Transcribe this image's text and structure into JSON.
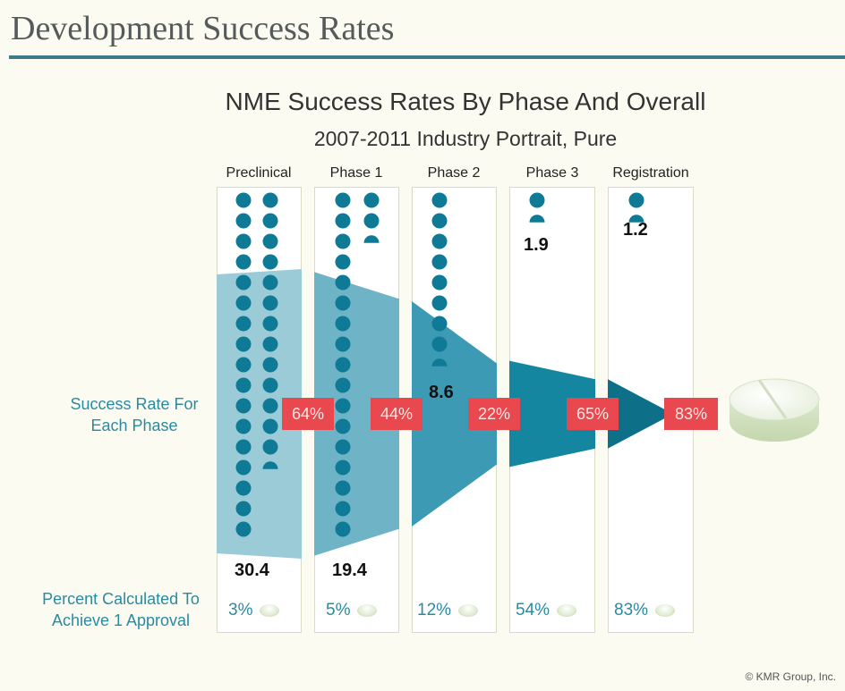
{
  "header": {
    "title": "Development Success Rates"
  },
  "chart_data": {
    "type": "table",
    "title": "NME Success Rates By Phase And Overall",
    "subtitle": "2007-2011 Industry Portrait, Pure",
    "categories": [
      "Preclinical",
      "Phase 1",
      "Phase 2",
      "Phase 3",
      "Registration"
    ],
    "compounds_needed": [
      30.4,
      19.4,
      8.6,
      1.9,
      1.2
    ],
    "phase_success_rate_labels": [
      "64%",
      "44%",
      "22%",
      "65%",
      "83%"
    ],
    "phase_success_rates": [
      64,
      44,
      22,
      65,
      83
    ],
    "approval_percent_labels": [
      "3%",
      "5%",
      "12%",
      "54%",
      "83%"
    ],
    "approval_percent": [
      3,
      5,
      12,
      54,
      83
    ],
    "row_labels": {
      "success_rate": "Success Rate For Each Phase",
      "approval": "Percent Calculated To Achieve 1 Approval"
    },
    "icons": {
      "compound": "compound-dot-icon",
      "approval": "pill-icon"
    },
    "colors": {
      "dot": "#0e7a96",
      "funnel": [
        "#9ccbd8",
        "#6fb3c7",
        "#3d9ab4",
        "#14869f",
        "#0d6f88"
      ],
      "badge": "#e8484e",
      "accent_text": "#2a8aa0",
      "rule": "#3f7a8a"
    }
  },
  "side_labels": {
    "success_line1": "Success Rate For",
    "success_line2": "Each Phase",
    "approval_line1": "Percent Calculated To",
    "approval_line2": "Achieve 1 Approval"
  },
  "footer": {
    "copyright": "© KMR Group, Inc."
  }
}
